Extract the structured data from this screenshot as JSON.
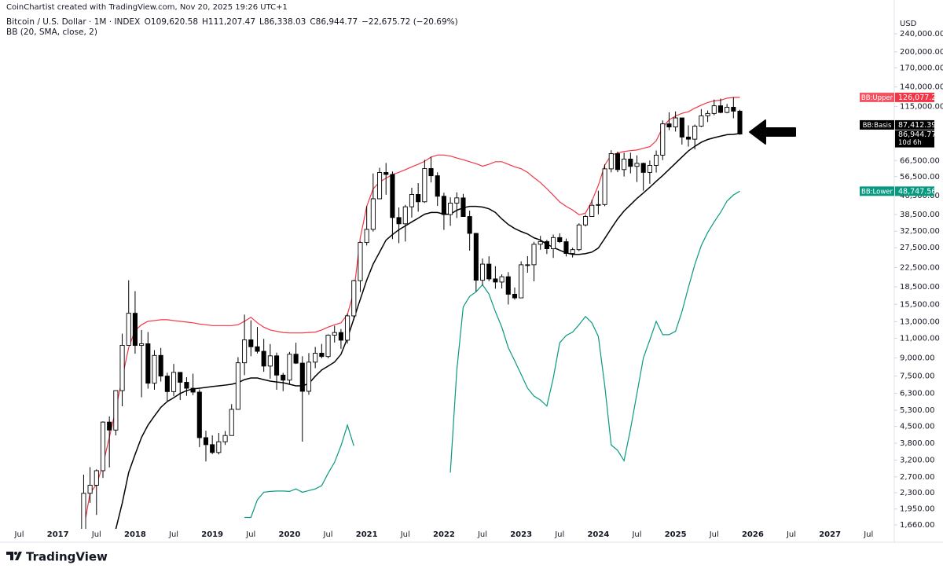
{
  "header": {
    "credit": "CoinChartist created with TradingView.com, Nov 20, 2025 19:26 UTC+1",
    "symbol": "Bitcoin / U.S. Dollar · 1M · INDEX",
    "ohlc": [
      "O109,620.58",
      "H111,207.47",
      "L86,338.03",
      "C86,944.77"
    ],
    "change": "−22,675.72 (−20.69%)",
    "indicator": "BB (20, SMA, close, 2)"
  },
  "branding": "TradingView",
  "chart_data": {
    "type": "candlestick",
    "currency": "USD",
    "log_scale": true,
    "grid": false,
    "up_color": "#ffffff",
    "down_color": "#000000",
    "x": [
      "2017-05",
      "2017-06",
      "2017-07",
      "2017-08",
      "2017-09",
      "2017-10",
      "2017-11",
      "2017-12",
      "2018-01",
      "2018-02",
      "2018-03",
      "2018-04",
      "2018-05",
      "2018-06",
      "2018-07",
      "2018-08",
      "2018-09",
      "2018-10",
      "2018-11",
      "2018-12",
      "2019-01",
      "2019-02",
      "2019-03",
      "2019-04",
      "2019-05",
      "2019-06",
      "2019-07",
      "2019-08",
      "2019-09",
      "2019-10",
      "2019-11",
      "2019-12",
      "2020-01",
      "2020-02",
      "2020-03",
      "2020-04",
      "2020-05",
      "2020-06",
      "2020-07",
      "2020-08",
      "2020-09",
      "2020-10",
      "2020-11",
      "2020-12",
      "2021-01",
      "2021-02",
      "2021-03",
      "2021-04",
      "2021-05",
      "2021-06",
      "2021-07",
      "2021-08",
      "2021-09",
      "2021-10",
      "2021-11",
      "2021-12",
      "2022-01",
      "2022-02",
      "2022-03",
      "2022-04",
      "2022-05",
      "2022-06",
      "2022-07",
      "2022-08",
      "2022-09",
      "2022-10",
      "2022-11",
      "2022-12",
      "2023-01",
      "2023-02",
      "2023-03",
      "2023-04",
      "2023-05",
      "2023-06",
      "2023-07",
      "2023-08",
      "2023-09",
      "2023-10",
      "2023-11",
      "2023-12",
      "2024-01",
      "2024-02",
      "2024-03",
      "2024-04",
      "2024-05",
      "2024-06",
      "2024-07",
      "2024-08",
      "2024-09",
      "2024-10",
      "2024-11",
      "2024-12",
      "2025-01",
      "2025-02",
      "2025-03",
      "2025-04",
      "2025-05",
      "2025-06",
      "2025-07",
      "2025-08",
      "2025-09",
      "2025-10",
      "2025-11"
    ],
    "open": [
      1348,
      2286,
      2480,
      2875,
      4703,
      4339,
      6468,
      10233,
      14156,
      10221,
      10397,
      6973,
      9240,
      7494,
      6404,
      7780,
      7037,
      6626,
      6371,
      4017,
      3742,
      3457,
      3854,
      4105,
      5350,
      8574,
      10818,
      10085,
      9631,
      8293,
      9199,
      7569,
      7194,
      9350,
      8544,
      6424,
      8630,
      9448,
      9138,
      11335,
      11649,
      10777,
      13791,
      19700,
      28990,
      33114,
      45137,
      58918,
      57750,
      37332,
      35040,
      41626,
      47166,
      43790,
      61318,
      57005,
      46306,
      38483,
      43194,
      45538,
      37714,
      31792,
      19784,
      23296,
      20050,
      19423,
      20496,
      17168,
      16548,
      23139,
      23147,
      28478,
      29268,
      27219,
      30477,
      29230,
      25941,
      26967,
      34639,
      37723,
      42265,
      42580,
      61130,
      71280,
      60672,
      67491,
      62678,
      64619,
      58969,
      63301,
      70215,
      96405,
      93429,
      102405,
      84350,
      82548,
      94172,
      104591,
      107135,
      115764,
      108237,
      114056,
      109620.58
    ],
    "high": [
      2763,
      2980,
      2916,
      4736,
      4980,
      6470,
      11517,
      19783,
      17712,
      11958,
      11711,
      9745,
      9964,
      7754,
      8474,
      7780,
      7410,
      7680,
      6552,
      4309,
      4110,
      4210,
      4296,
      5642,
      9075,
      13970,
      13183,
      12326,
      10921,
      10370,
      9505,
      7743,
      9578,
      10500,
      9167,
      9460,
      10067,
      10380,
      11434,
      12468,
      12067,
      14100,
      19862,
      29300,
      41950,
      58330,
      61788,
      64854,
      59519,
      41330,
      42448,
      50482,
      52920,
      66999,
      69000,
      59053,
      47990,
      45821,
      48190,
      47444,
      40023,
      31957,
      24668,
      25212,
      22799,
      20988,
      21480,
      18387,
      23955,
      25250,
      29190,
      31000,
      29820,
      31431,
      31814,
      30176,
      27488,
      35198,
      38442,
      44700,
      48969,
      64000,
      73777,
      72797,
      71979,
      71997,
      70079,
      65105,
      66498,
      73620,
      99800,
      108353,
      109358,
      102500,
      95000,
      95750,
      111980,
      110400,
      123218,
      124474,
      117900,
      126199,
      111207.47
    ],
    "low": [
      1348,
      2076,
      1837,
      2671,
      2972,
      4110,
      5519,
      10900,
      9402,
      6048,
      6600,
      6526,
      7090,
      5826,
      6111,
      5880,
      6135,
      6180,
      3652,
      3157,
      3400,
      3391,
      3733,
      4096,
      5333,
      7565,
      9164,
      9421,
      7830,
      7300,
      6526,
      6435,
      6914,
      8470,
      3858,
      6202,
      8117,
      8975,
      8977,
      10525,
      9880,
      10416,
      13219,
      17572,
      28130,
      32384,
      45000,
      47044,
      30000,
      28800,
      29278,
      37332,
      39600,
      43291,
      53256,
      42000,
      32933,
      34322,
      37155,
      37697,
      26700,
      17622,
      18782,
      19600,
      18153,
      18190,
      15476,
      16256,
      16499,
      21351,
      19569,
      26942,
      25811,
      24797,
      28861,
      25166,
      24901,
      26560,
      34099,
      37629,
      38555,
      41884,
      59005,
      59101,
      56552,
      58402,
      53485,
      49000,
      52550,
      58867,
      66800,
      90500,
      89164,
      78200,
      76600,
      74420,
      93300,
      98200,
      105100,
      107300,
      107270,
      102000,
      86338.03
    ],
    "close": [
      2286,
      2480,
      2875,
      4703,
      4339,
      6468,
      10233,
      14156,
      10221,
      10397,
      6973,
      9240,
      7494,
      6404,
      7780,
      7037,
      6626,
      6371,
      4017,
      3742,
      3457,
      3854,
      4105,
      5350,
      8574,
      10818,
      10085,
      9631,
      8293,
      9199,
      7569,
      7194,
      9350,
      8544,
      6424,
      8630,
      9448,
      9138,
      11335,
      11649,
      10777,
      13791,
      19700,
      28990,
      33114,
      45137,
      58918,
      57750,
      37332,
      35040,
      41626,
      47166,
      43790,
      61318,
      57005,
      46306,
      38483,
      43194,
      45538,
      37714,
      31792,
      19784,
      23296,
      20050,
      19423,
      20496,
      17168,
      16548,
      23139,
      23147,
      28478,
      29268,
      27219,
      30477,
      29230,
      25941,
      26967,
      34639,
      37723,
      42265,
      42580,
      61130,
      71280,
      60672,
      67491,
      62678,
      64619,
      58969,
      63301,
      70215,
      96405,
      93429,
      102405,
      84350,
      82548,
      94172,
      104591,
      107135,
      115764,
      108237,
      114056,
      109620.58,
      86944.77
    ],
    "price_label": "86,944.77",
    "countdown": "10d 6h",
    "series": [
      {
        "name": "BB:Upper",
        "color": "#f23645",
        "last_value_label": "126,077.22",
        "values": [
          1590,
          2290,
          2500,
          3050,
          4030,
          5360,
          7350,
          10000,
          11900,
          12600,
          13050,
          13150,
          13260,
          13260,
          13150,
          13050,
          12950,
          12850,
          12700,
          12600,
          12500,
          12500,
          12500,
          12500,
          12600,
          13050,
          13600,
          12850,
          12300,
          11950,
          11800,
          11650,
          11600,
          11600,
          11600,
          11650,
          11700,
          11950,
          12300,
          12600,
          12850,
          14000,
          17600,
          30400,
          41800,
          49900,
          53500,
          55600,
          57700,
          59000,
          60600,
          62400,
          64000,
          66000,
          68900,
          70300,
          70300,
          69600,
          68200,
          67000,
          65700,
          64400,
          62800,
          64000,
          65700,
          65700,
          64000,
          62400,
          61200,
          59000,
          55900,
          53200,
          50000,
          46800,
          43700,
          41800,
          40300,
          38400,
          39000,
          44100,
          51700,
          63500,
          70300,
          71700,
          72900,
          73500,
          74000,
          75300,
          76500,
          81200,
          93000,
          100400,
          104400,
          107300,
          109000,
          113000,
          116500,
          119700,
          121700,
          122500,
          125000,
          126000,
          126077.22
        ]
      },
      {
        "name": "BB:Basis",
        "color": "#000000",
        "last_value_label": "87,412.39",
        "values": [
          null,
          null,
          null,
          null,
          null,
          1590,
          2070,
          2820,
          3390,
          4030,
          4560,
          5000,
          5460,
          5790,
          6020,
          6280,
          6470,
          6580,
          6630,
          6680,
          6740,
          6790,
          6840,
          6900,
          7010,
          7230,
          7350,
          7350,
          7230,
          7120,
          7060,
          7010,
          6900,
          6790,
          6790,
          6950,
          7480,
          7970,
          8290,
          8640,
          9340,
          11000,
          13400,
          16300,
          19800,
          23300,
          26300,
          29700,
          31400,
          33000,
          34300,
          35700,
          37100,
          38600,
          39300,
          39300,
          38600,
          38600,
          40200,
          41200,
          41800,
          41800,
          41500,
          40800,
          39300,
          36800,
          34800,
          33400,
          32400,
          31600,
          30400,
          29700,
          28500,
          27600,
          26800,
          26100,
          25700,
          25700,
          25900,
          26300,
          27400,
          30200,
          33400,
          36800,
          39900,
          42500,
          45300,
          47900,
          50700,
          53900,
          57100,
          60800,
          64700,
          68900,
          73300,
          76800,
          80000,
          82300,
          83800,
          85100,
          86400,
          86700,
          87412.39
        ]
      },
      {
        "name": "BB:Lower",
        "color": "#089981",
        "last_value_label": "48,747.56",
        "values": [
          null,
          null,
          null,
          null,
          null,
          null,
          null,
          null,
          null,
          null,
          null,
          null,
          null,
          null,
          null,
          null,
          null,
          null,
          null,
          null,
          null,
          null,
          null,
          null,
          null,
          1790,
          1790,
          2140,
          2310,
          2330,
          2340,
          2340,
          2330,
          2390,
          2310,
          2350,
          2390,
          2470,
          2800,
          3130,
          3700,
          4560,
          3700,
          null,
          null,
          null,
          null,
          null,
          null,
          null,
          null,
          null,
          null,
          null,
          null,
          null,
          null,
          2820,
          7930,
          15100,
          16800,
          17600,
          18900,
          17200,
          14400,
          12300,
          10000,
          8750,
          7630,
          6630,
          6120,
          5880,
          5530,
          7350,
          10500,
          11300,
          11700,
          12600,
          13700,
          12850,
          11200,
          6800,
          3730,
          3530,
          3180,
          4380,
          6280,
          9000,
          10800,
          13050,
          11400,
          11400,
          11800,
          14400,
          18400,
          23200,
          28100,
          32100,
          35700,
          39300,
          44100,
          46900,
          48747.56
        ]
      }
    ],
    "xlim": [
      "2016-04",
      "2027-11"
    ],
    "xticks": [
      {
        "value": "2016-07",
        "label": "Jul"
      },
      {
        "value": "2017-01",
        "label": "2017"
      },
      {
        "value": "2017-07",
        "label": "Jul"
      },
      {
        "value": "2018-01",
        "label": "2018"
      },
      {
        "value": "2018-07",
        "label": "Jul"
      },
      {
        "value": "2019-01",
        "label": "2019"
      },
      {
        "value": "2019-07",
        "label": "Jul"
      },
      {
        "value": "2020-01",
        "label": "2020"
      },
      {
        "value": "2020-07",
        "label": "Jul"
      },
      {
        "value": "2021-01",
        "label": "2021"
      },
      {
        "value": "2021-07",
        "label": "Jul"
      },
      {
        "value": "2022-01",
        "label": "2022"
      },
      {
        "value": "2022-07",
        "label": "Jul"
      },
      {
        "value": "2023-01",
        "label": "2023"
      },
      {
        "value": "2023-07",
        "label": "Jul"
      },
      {
        "value": "2024-01",
        "label": "2024"
      },
      {
        "value": "2024-07",
        "label": "Jul"
      },
      {
        "value": "2025-01",
        "label": "2025"
      },
      {
        "value": "2025-07",
        "label": "Jul"
      },
      {
        "value": "2026-01",
        "label": "2026"
      },
      {
        "value": "2026-07",
        "label": "Jul"
      },
      {
        "value": "2027-01",
        "label": "2027"
      },
      {
        "value": "2027-07",
        "label": "Jul"
      }
    ],
    "ylim": [
      1595,
      266200
    ],
    "yticks": [
      {
        "value": 240000,
        "label": "240,000.00"
      },
      {
        "value": 200000,
        "label": "200,000.00"
      },
      {
        "value": 170000,
        "label": "170,000.00"
      },
      {
        "value": 140000,
        "label": "140,000.00"
      },
      {
        "value": 115000,
        "label": "115,000.00"
      },
      {
        "value": 66500,
        "label": "66,500.00"
      },
      {
        "value": 56500,
        "label": "56,500.00"
      },
      {
        "value": 46500,
        "label": "46,500.00"
      },
      {
        "value": 38500,
        "label": "38,500.00"
      },
      {
        "value": 32500,
        "label": "32,500.00"
      },
      {
        "value": 27500,
        "label": "27,500.00"
      },
      {
        "value": 22500,
        "label": "22,500.00"
      },
      {
        "value": 18500,
        "label": "18,500.00"
      },
      {
        "value": 15500,
        "label": "15,500.00"
      },
      {
        "value": 13000,
        "label": "13,000.00"
      },
      {
        "value": 11000,
        "label": "11,000.00"
      },
      {
        "value": 9000,
        "label": "9,000.00"
      },
      {
        "value": 7500,
        "label": "7,500.00"
      },
      {
        "value": 6300,
        "label": "6,300.00"
      },
      {
        "value": 5300,
        "label": "5,300.00"
      },
      {
        "value": 4500,
        "label": "4,500.00"
      },
      {
        "value": 3800,
        "label": "3,800.00"
      },
      {
        "value": 3200,
        "label": "3,200.00"
      },
      {
        "value": 2700,
        "label": "2,700.00"
      },
      {
        "value": 2300,
        "label": "2,300.00"
      },
      {
        "value": 1950,
        "label": "1,950.00"
      },
      {
        "value": 1660,
        "label": "1,660.00"
      }
    ]
  }
}
